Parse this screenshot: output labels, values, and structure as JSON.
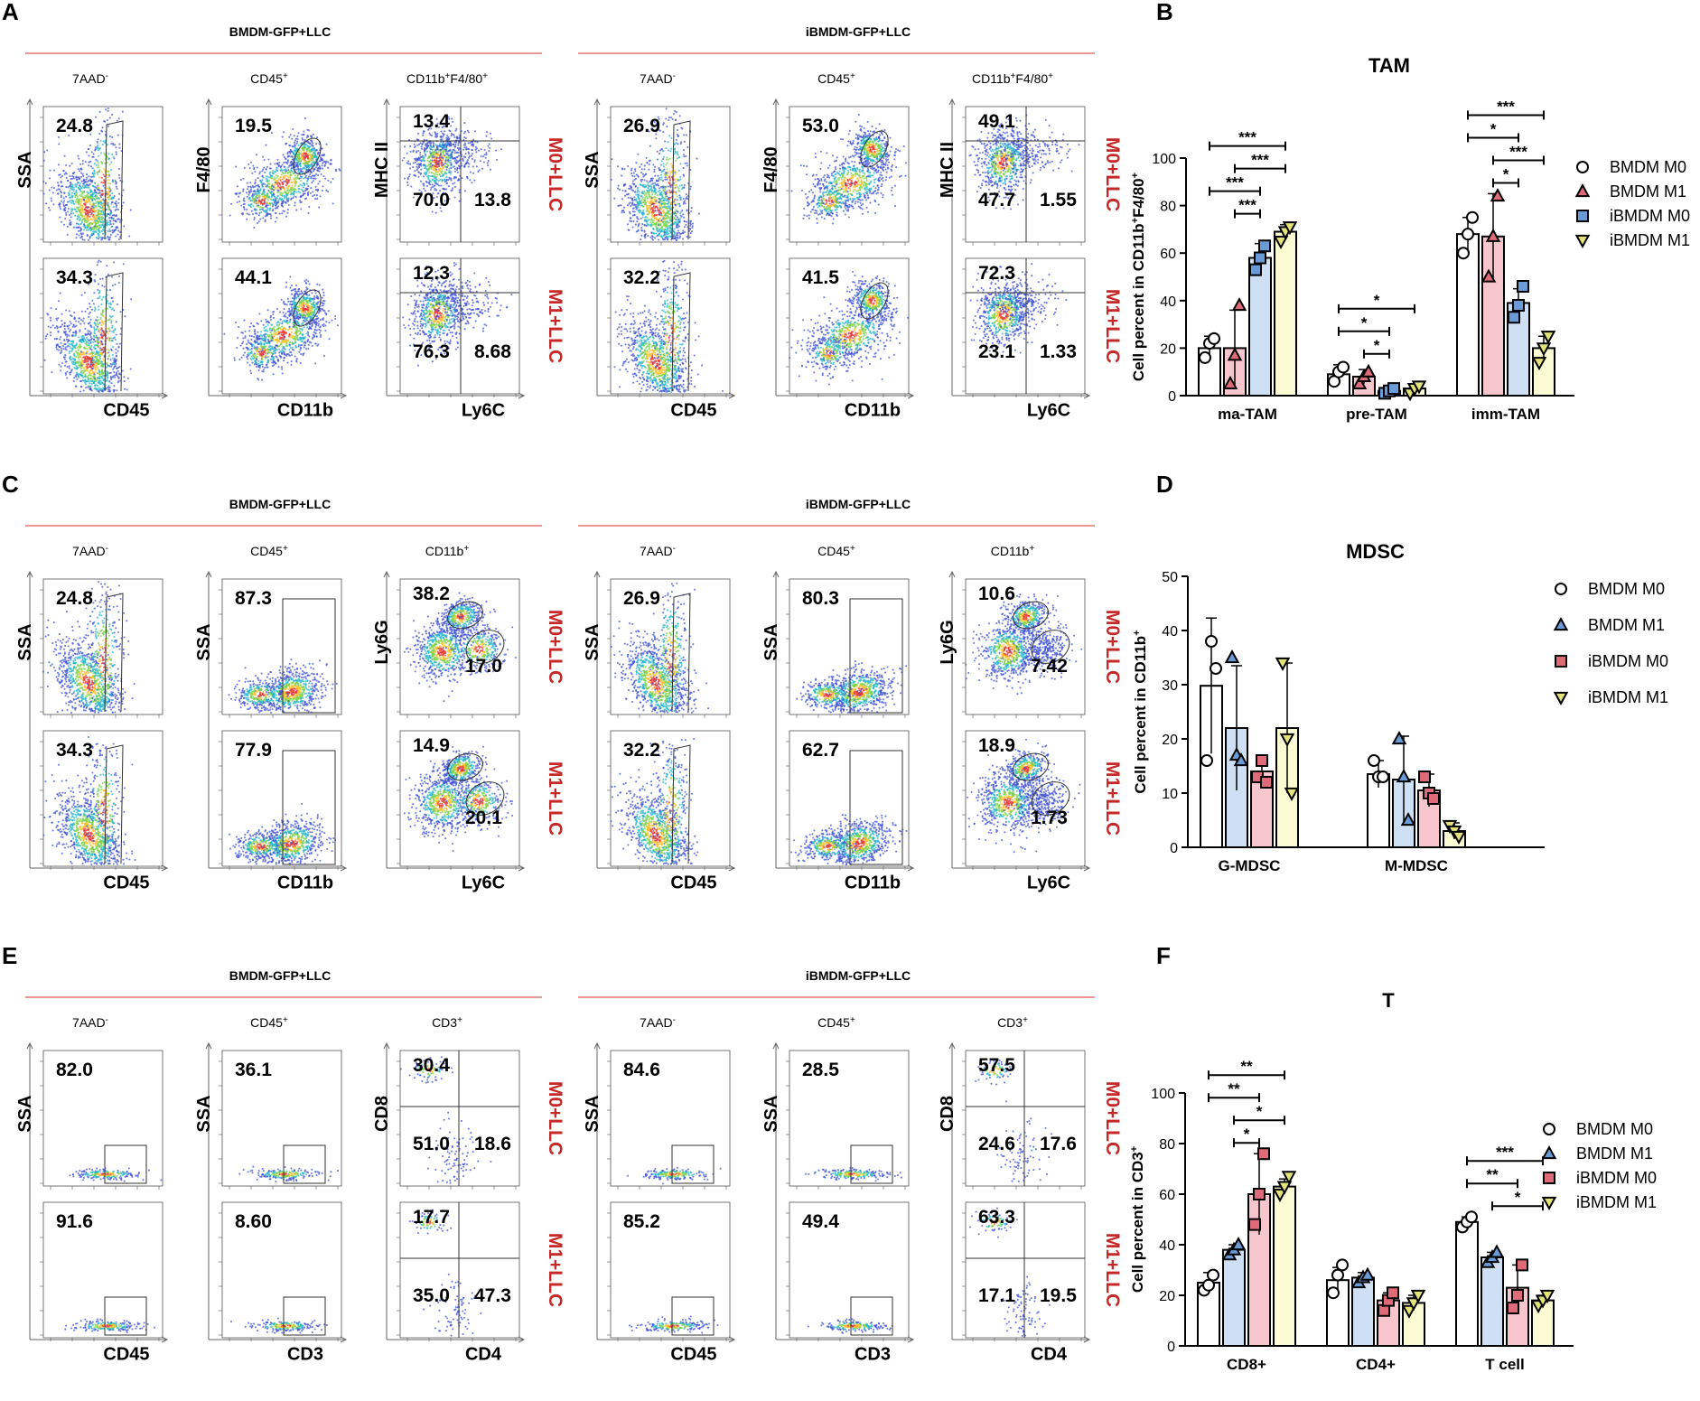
{
  "colors": {
    "condition": "#c62828",
    "rule": "#e57373",
    "BMDM M0": "#ffffff",
    "BMDM M1": "#cfe0f5",
    "iBMDM M0": "#f7c6cc",
    "iBMDM M1": "#fbfbd3",
    "markerBlue": "#6a9bd6",
    "markerRed": "#e06b78",
    "markerYellow": "#e3e37a"
  },
  "flow_sections": [
    {
      "letter": "A",
      "groups": [
        {
          "header": "BMDM-GFP+LLC",
          "gates": [
            "7AAD-",
            "CD45+",
            "CD11b+F4/80+"
          ],
          "plots": [
            {
              "xlabel": "CD45",
              "ylabel": "SSA",
              "kind": "gate7",
              "rows": [
                [
                  "24.8"
                ],
                [
                  "34.3"
                ]
              ]
            },
            {
              "xlabel": "CD11b",
              "ylabel": "F4/80",
              "kind": "f480",
              "rows": [
                [
                  "19.5"
                ],
                [
                  "44.1"
                ]
              ]
            },
            {
              "xlabel": "Ly6C",
              "ylabel": "MHC II",
              "kind": "quad",
              "rows": [
                [
                  "13.4",
                  "70.0",
                  "13.8"
                ],
                [
                  "12.3",
                  "76.3",
                  "8.68"
                ]
              ]
            }
          ]
        },
        {
          "header": "iBMDM-GFP+LLC",
          "gates": [
            "7AAD-",
            "CD45+",
            "CD11b+F4/80+"
          ],
          "plots": [
            {
              "xlabel": "CD45",
              "ylabel": "SSA",
              "kind": "gate7",
              "rows": [
                [
                  "26.9"
                ],
                [
                  "32.2"
                ]
              ]
            },
            {
              "xlabel": "CD11b",
              "ylabel": "F4/80",
              "kind": "f480",
              "rows": [
                [
                  "53.0"
                ],
                [
                  "41.5"
                ]
              ]
            },
            {
              "xlabel": "Ly6C",
              "ylabel": "MHC II",
              "kind": "quad",
              "rows": [
                [
                  "49.1",
                  "47.7",
                  "1.55"
                ],
                [
                  "72.3",
                  "23.1",
                  "1.33"
                ]
              ]
            }
          ]
        }
      ],
      "conditions": [
        "M0+LLC",
        "M1+LLC"
      ]
    },
    {
      "letter": "C",
      "groups": [
        {
          "header": "BMDM-GFP+LLC",
          "gates": [
            "7AAD-",
            "CD45+",
            "CD11b+"
          ],
          "plots": [
            {
              "xlabel": "CD45",
              "ylabel": "SSA",
              "kind": "gate7",
              "rows": [
                [
                  "24.8"
                ],
                [
                  "34.3"
                ]
              ]
            },
            {
              "xlabel": "CD11b",
              "ylabel": "SSA",
              "kind": "cd11b",
              "rows": [
                [
                  "87.3"
                ],
                [
                  "77.9"
                ]
              ]
            },
            {
              "xlabel": "Ly6C",
              "ylabel": "Ly6G",
              "kind": "ly6",
              "rows": [
                [
                  "38.2",
                  "17.0"
                ],
                [
                  "14.9",
                  "20.1"
                ]
              ]
            }
          ]
        },
        {
          "header": "iBMDM-GFP+LLC",
          "gates": [
            "7AAD-",
            "CD45+",
            "CD11b+"
          ],
          "plots": [
            {
              "xlabel": "CD45",
              "ylabel": "SSA",
              "kind": "gate7",
              "rows": [
                [
                  "26.9"
                ],
                [
                  "32.2"
                ]
              ]
            },
            {
              "xlabel": "CD11b",
              "ylabel": "SSA",
              "kind": "cd11b",
              "rows": [
                [
                  "80.3"
                ],
                [
                  "62.7"
                ]
              ]
            },
            {
              "xlabel": "Ly6C",
              "ylabel": "Ly6G",
              "kind": "ly6",
              "rows": [
                [
                  "10.6",
                  "7.42"
                ],
                [
                  "18.9",
                  "1.73"
                ]
              ]
            }
          ]
        }
      ],
      "conditions": [
        "M0+LLC",
        "M1+LLC"
      ]
    },
    {
      "letter": "E",
      "groups": [
        {
          "header": "BMDM-GFP+LLC",
          "gates": [
            "7AAD-",
            "CD45+",
            "CD3+"
          ],
          "plots": [
            {
              "xlabel": "CD45",
              "ylabel": "SSA",
              "kind": "sparse",
              "rows": [
                [
                  "82.0"
                ],
                [
                  "91.6"
                ]
              ]
            },
            {
              "xlabel": "CD3",
              "ylabel": "SSA",
              "kind": "sparse",
              "rows": [
                [
                  "36.1"
                ],
                [
                  "8.60"
                ]
              ]
            },
            {
              "xlabel": "CD4",
              "ylabel": "CD8",
              "kind": "tquad",
              "rows": [
                [
                  "30.4",
                  "51.0",
                  "18.6"
                ],
                [
                  "17.7",
                  "35.0",
                  "47.3"
                ]
              ]
            }
          ]
        },
        {
          "header": "iBMDM-GFP+LLC",
          "gates": [
            "7AAD-",
            "CD45+",
            "CD3+"
          ],
          "plots": [
            {
              "xlabel": "CD45",
              "ylabel": "SSA",
              "kind": "sparse",
              "rows": [
                [
                  "84.6"
                ],
                [
                  "85.2"
                ]
              ]
            },
            {
              "xlabel": "CD3",
              "ylabel": "SSA",
              "kind": "sparse",
              "rows": [
                [
                  "28.5"
                ],
                [
                  "49.4"
                ]
              ]
            },
            {
              "xlabel": "CD4",
              "ylabel": "CD8",
              "kind": "tquad",
              "rows": [
                [
                  "57.5",
                  "24.6",
                  "17.6"
                ],
                [
                  "63.3",
                  "17.1",
                  "19.5"
                ]
              ]
            }
          ]
        }
      ],
      "conditions": [
        "M0+LLC",
        "M1+LLC"
      ]
    }
  ],
  "chart_data": [
    {
      "letter": "B",
      "type": "bar",
      "title": "TAM",
      "ylabel": "Cell percent in CD11b+F4/80+",
      "ylim": [
        0,
        100
      ],
      "yticks": [
        0,
        20,
        40,
        60,
        80,
        100
      ],
      "categories": [
        "ma-TAM",
        "pre-TAM",
        "imm-TAM"
      ],
      "series": [
        {
          "name": "BMDM M0",
          "marker": "circle",
          "fill": "#ffffff",
          "values": [
            20,
            9,
            68
          ],
          "errors": [
            5,
            4,
            7
          ],
          "points": [
            [
              16,
              22,
              24
            ],
            [
              6,
              10,
              12
            ],
            [
              60,
              68,
              75
            ]
          ]
        },
        {
          "name": "BMDM M1",
          "marker": "triangle",
          "fill": "#f7c6cc",
          "values": [
            20,
            8,
            67
          ],
          "errors": [
            16,
            3,
            18
          ],
          "points": [
            [
              5,
              17,
              38
            ],
            [
              5,
              8,
              10
            ],
            [
              50,
              67,
              84
            ]
          ]
        },
        {
          "name": "iBMDM M0",
          "marker": "square",
          "fill": "#cfe0f5",
          "values": [
            58,
            2,
            39
          ],
          "errors": [
            6,
            1,
            6
          ],
          "points": [
            [
              53,
              58,
              63
            ],
            [
              1,
              2,
              3
            ],
            [
              33,
              38,
              46
            ]
          ]
        },
        {
          "name": "iBMDM M1",
          "marker": "invtriangle",
          "fill": "#fbfbd3",
          "values": [
            69,
            3,
            20
          ],
          "errors": [
            3,
            2,
            5
          ],
          "points": [
            [
              65,
              69,
              71
            ],
            [
              1,
              3,
              4
            ],
            [
              14,
              20,
              25
            ]
          ]
        }
      ],
      "brackets": [
        {
          "cat": 0,
          "a": 0,
          "b": 3,
          "label": "***"
        },
        {
          "cat": 0,
          "a": 1,
          "b": 3,
          "label": "***"
        },
        {
          "cat": 0,
          "a": 0,
          "b": 2,
          "label": "***"
        },
        {
          "cat": 0,
          "a": 1,
          "b": 2,
          "label": "***"
        },
        {
          "cat": 1,
          "a": 0,
          "b": 3,
          "label": "*"
        },
        {
          "cat": 1,
          "a": 0,
          "b": 2,
          "label": "*"
        },
        {
          "cat": 1,
          "a": 1,
          "b": 2,
          "label": "*"
        },
        {
          "cat": 2,
          "a": 0,
          "b": 3,
          "label": "***"
        },
        {
          "cat": 2,
          "a": 0,
          "b": 2,
          "label": "*"
        },
        {
          "cat": 2,
          "a": 1,
          "b": 3,
          "label": "***"
        },
        {
          "cat": 2,
          "a": 1,
          "b": 2,
          "label": "*"
        }
      ]
    },
    {
      "letter": "D",
      "type": "bar",
      "title": "MDSC",
      "ylabel": "Cell percent in CD11b+",
      "ylim": [
        0,
        50
      ],
      "yticks": [
        0,
        10,
        20,
        30,
        40,
        50
      ],
      "categories": [
        "G-MDSC",
        "M-MDSC"
      ],
      "series": [
        {
          "name": "BMDM M0",
          "marker": "circle",
          "fill": "#ffffff",
          "values": [
            29.8,
            13.5
          ],
          "errors": [
            12.5,
            2.5
          ],
          "points": [
            [
              16,
              38,
              33
            ],
            [
              16,
              13,
              13
            ]
          ]
        },
        {
          "name": "BMDM M1",
          "marker": "triangle",
          "fill": "#cfe0f5",
          "values": [
            22,
            12.5
          ],
          "errors": [
            11.5,
            8
          ],
          "points": [
            [
              35,
              17,
              16
            ],
            [
              20,
              13,
              5
            ]
          ]
        },
        {
          "name": "iBMDM M0",
          "marker": "square",
          "fill": "#f7c6cc",
          "values": [
            14,
            10.5
          ],
          "errors": [
            3,
            3
          ],
          "points": [
            [
              13,
              16,
              12
            ],
            [
              13,
              10,
              9
            ]
          ]
        },
        {
          "name": "iBMDM M1",
          "marker": "invtriangle",
          "fill": "#fbfbd3",
          "values": [
            22,
            3
          ],
          "errors": [
            12,
            1.5
          ],
          "points": [
            [
              34,
              20,
              10
            ],
            [
              4,
              3,
              2
            ]
          ]
        }
      ],
      "brackets": []
    },
    {
      "letter": "F",
      "type": "bar",
      "title": "T",
      "ylabel": "Cell percent  in CD3+",
      "ylim": [
        0,
        100
      ],
      "yticks": [
        0,
        20,
        40,
        60,
        80,
        100
      ],
      "categories": [
        "CD8+",
        "CD4+",
        "T cell"
      ],
      "series": [
        {
          "name": "BMDM M0",
          "marker": "circle",
          "fill": "#ffffff",
          "values": [
            25,
            26,
            49
          ],
          "errors": [
            4,
            5,
            2
          ],
          "points": [
            [
              22,
              24,
              28
            ],
            [
              21,
              28,
              32
            ],
            [
              47,
              49,
              51
            ]
          ]
        },
        {
          "name": "BMDM M1",
          "marker": "triangle",
          "fill": "#cfe0f5",
          "values": [
            38,
            27,
            35
          ],
          "errors": [
            2,
            2,
            2
          ],
          "points": [
            [
              36,
              38,
              40
            ],
            [
              25,
              27,
              28
            ],
            [
              33,
              35,
              37
            ]
          ]
        },
        {
          "name": "iBMDM M0",
          "marker": "square",
          "fill": "#f7c6cc",
          "values": [
            60,
            18,
            23
          ],
          "errors": [
            16,
            3,
            9
          ],
          "points": [
            [
              48,
              60,
              76
            ],
            [
              14,
              18,
              21
            ],
            [
              15,
              20,
              32
            ]
          ]
        },
        {
          "name": "iBMDM M1",
          "marker": "invtriangle",
          "fill": "#fbfbd3",
          "values": [
            63,
            17,
            18
          ],
          "errors": [
            3,
            3,
            2
          ],
          "points": [
            [
              60,
              63,
              67
            ],
            [
              14,
              17,
              20
            ],
            [
              16,
              18,
              20
            ]
          ]
        }
      ],
      "brackets": [
        {
          "cat": 0,
          "a": 0,
          "b": 3,
          "label": "**"
        },
        {
          "cat": 0,
          "a": 0,
          "b": 2,
          "label": "**"
        },
        {
          "cat": 0,
          "a": 1,
          "b": 3,
          "label": "*"
        },
        {
          "cat": 0,
          "a": 1,
          "b": 2,
          "label": "*"
        },
        {
          "cat": 2,
          "a": 0,
          "b": 3,
          "label": "***"
        },
        {
          "cat": 2,
          "a": 0,
          "b": 2,
          "label": "**"
        },
        {
          "cat": 2,
          "a": 1,
          "b": 3,
          "label": "*"
        }
      ]
    }
  ]
}
